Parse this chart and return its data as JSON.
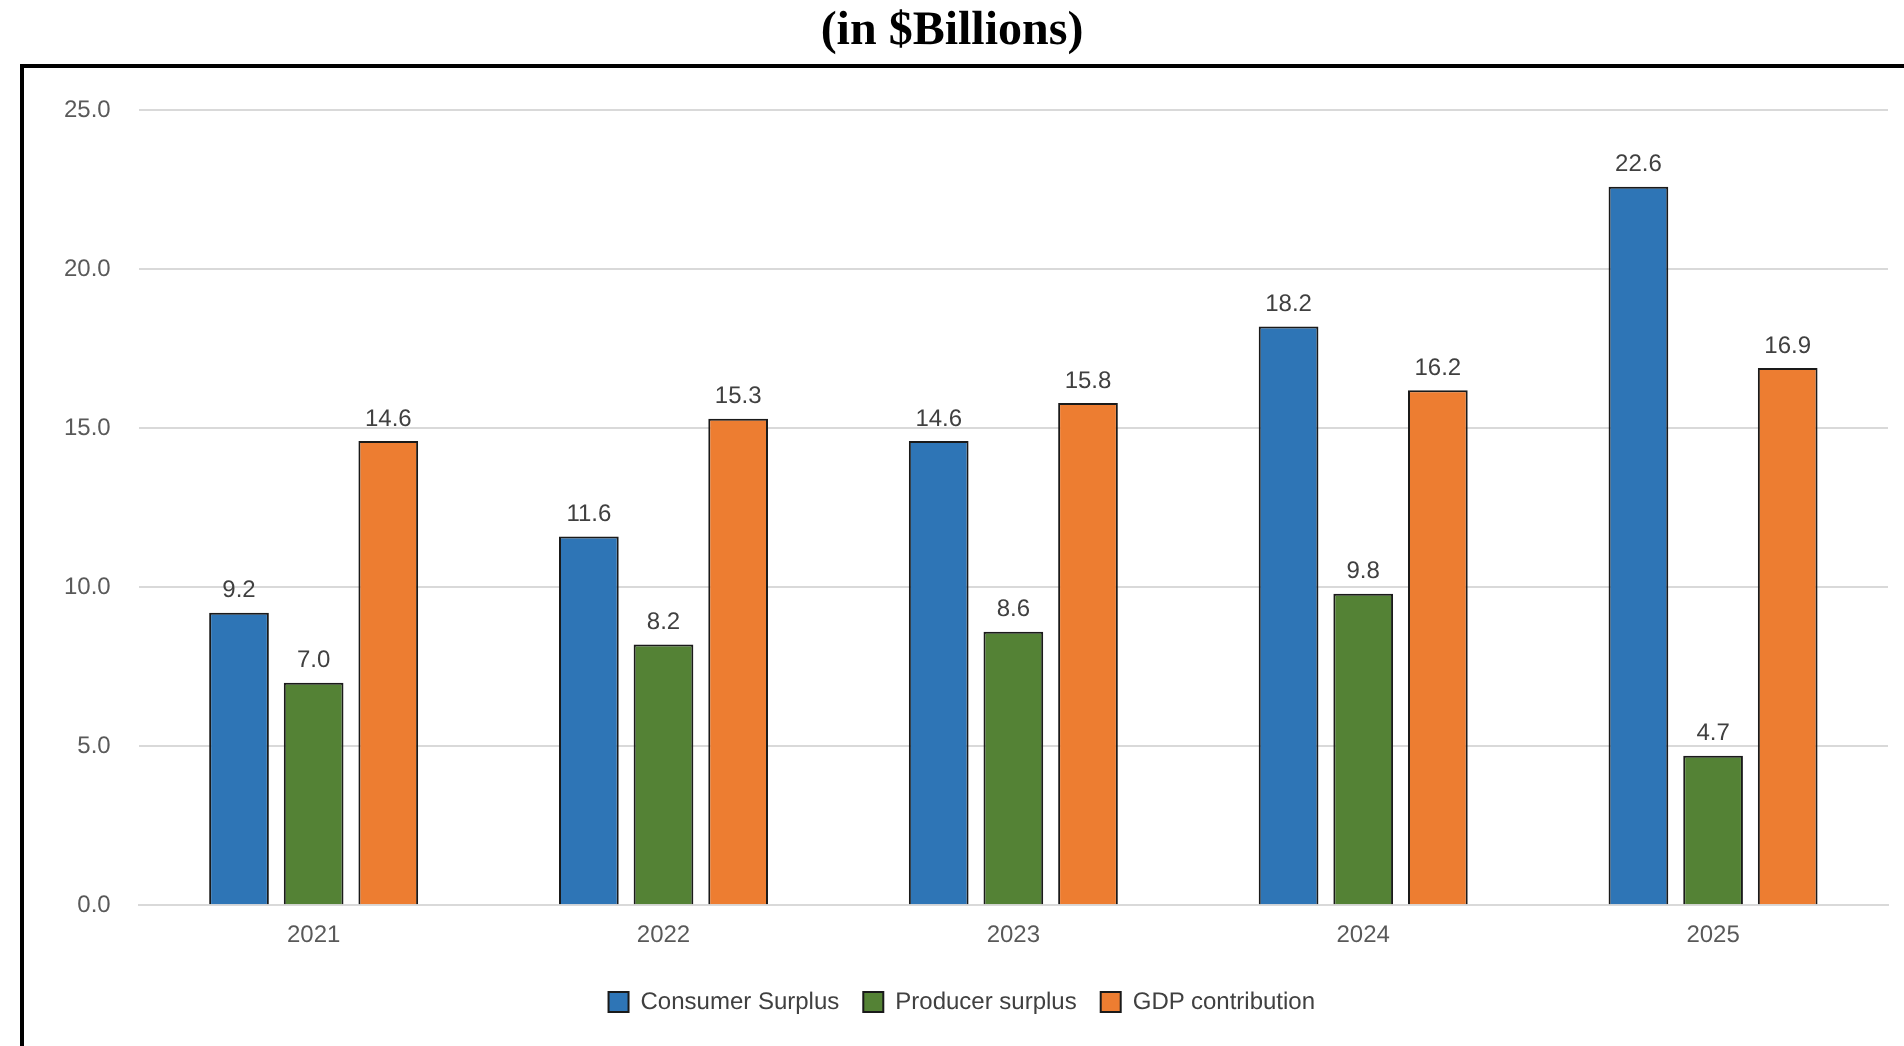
{
  "chart_data": {
    "type": "bar",
    "title": "(in $Billions)",
    "categories": [
      "2021",
      "2022",
      "2023",
      "2024",
      "2025"
    ],
    "series": [
      {
        "name": "Consumer Surplus",
        "color": "#2e75b6",
        "values": [
          9.2,
          11.6,
          14.6,
          18.2,
          22.6
        ],
        "value_labels": [
          "9.2",
          "11.6",
          "14.6",
          "18.2",
          "22.6"
        ]
      },
      {
        "name": "Producer surplus",
        "color": "#548235",
        "values": [
          7.0,
          8.2,
          8.6,
          9.8,
          4.7
        ],
        "value_labels": [
          "7.0",
          "8.2",
          "8.6",
          "9.8",
          "4.7"
        ]
      },
      {
        "name": "GDP contribution",
        "color": "#ed7d31",
        "values": [
          14.6,
          15.3,
          15.8,
          16.2,
          16.9
        ],
        "value_labels": [
          "14.6",
          "15.3",
          "15.8",
          "16.2",
          "16.9"
        ]
      }
    ],
    "ylim": [
      0,
      25
    ],
    "yticks": [
      {
        "value": 0,
        "label": "0.0"
      },
      {
        "value": 5,
        "label": "5.0"
      },
      {
        "value": 10,
        "label": "10.0"
      },
      {
        "value": 15,
        "label": "15.0"
      },
      {
        "value": 20,
        "label": "20.0"
      },
      {
        "value": 25,
        "label": "25.0"
      }
    ],
    "grid": "y",
    "legend": "bottom"
  }
}
